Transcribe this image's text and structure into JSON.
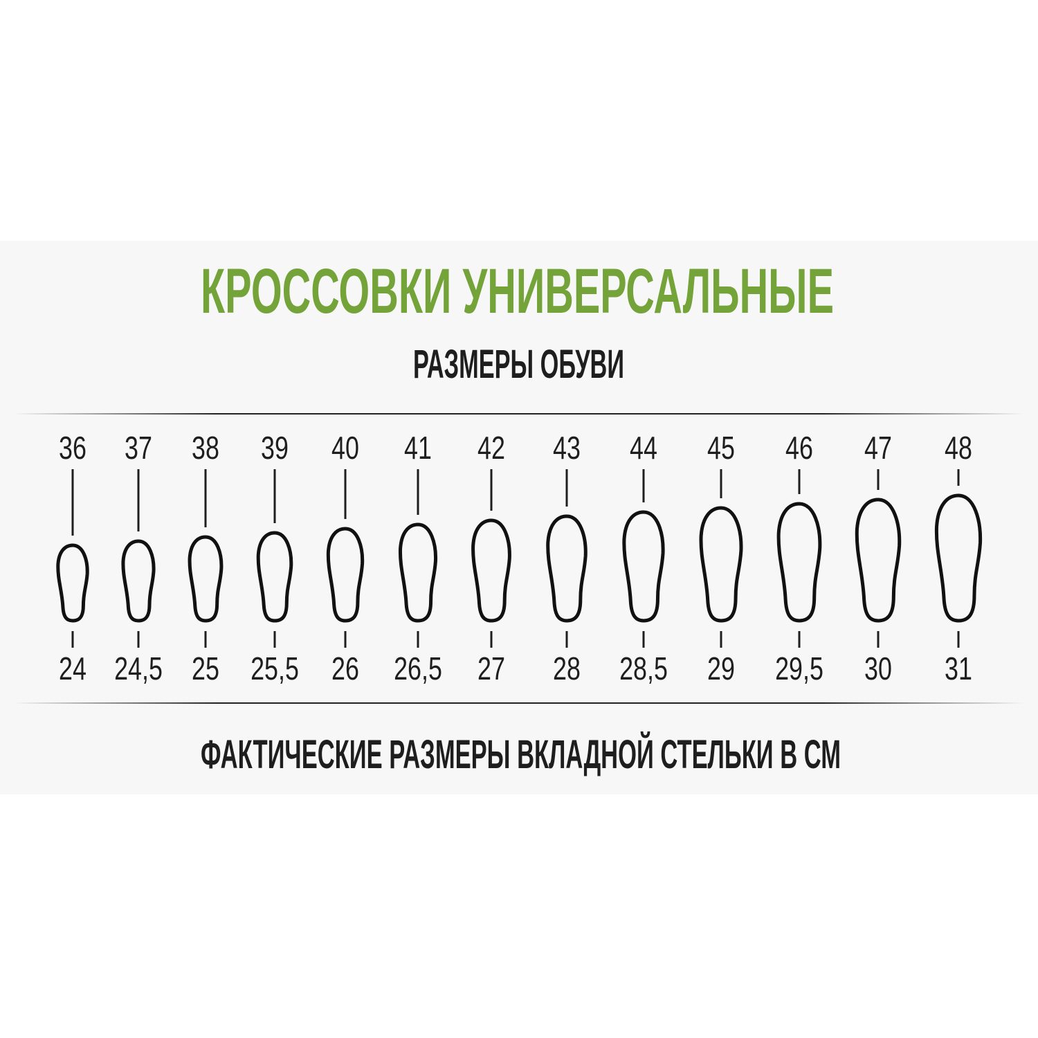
{
  "title": "КРОССОВКИ УНИВЕРСАЛЬНЫЕ",
  "subtitle": "РАЗМЕРЫ ОБУВИ",
  "footer": "ФАКТИЧЕСКИЕ РАЗМЕРЫ ВКЛАДНОЙ СТЕЛЬКИ В СМ",
  "colors": {
    "title": "#74a33a",
    "text": "#1e1e1e",
    "panel": "#f7f7f7"
  },
  "sizes": [
    {
      "eu": "36",
      "cm": "24"
    },
    {
      "eu": "37",
      "cm": "24,5"
    },
    {
      "eu": "38",
      "cm": "25"
    },
    {
      "eu": "39",
      "cm": "25,5"
    },
    {
      "eu": "40",
      "cm": "26"
    },
    {
      "eu": "41",
      "cm": "26,5"
    },
    {
      "eu": "42",
      "cm": "27"
    },
    {
      "eu": "43",
      "cm": "28"
    },
    {
      "eu": "44",
      "cm": "28,5"
    },
    {
      "eu": "45",
      "cm": "29"
    },
    {
      "eu": "46",
      "cm": "29,5"
    },
    {
      "eu": "47",
      "cm": "30"
    },
    {
      "eu": "48",
      "cm": "31"
    }
  ]
}
